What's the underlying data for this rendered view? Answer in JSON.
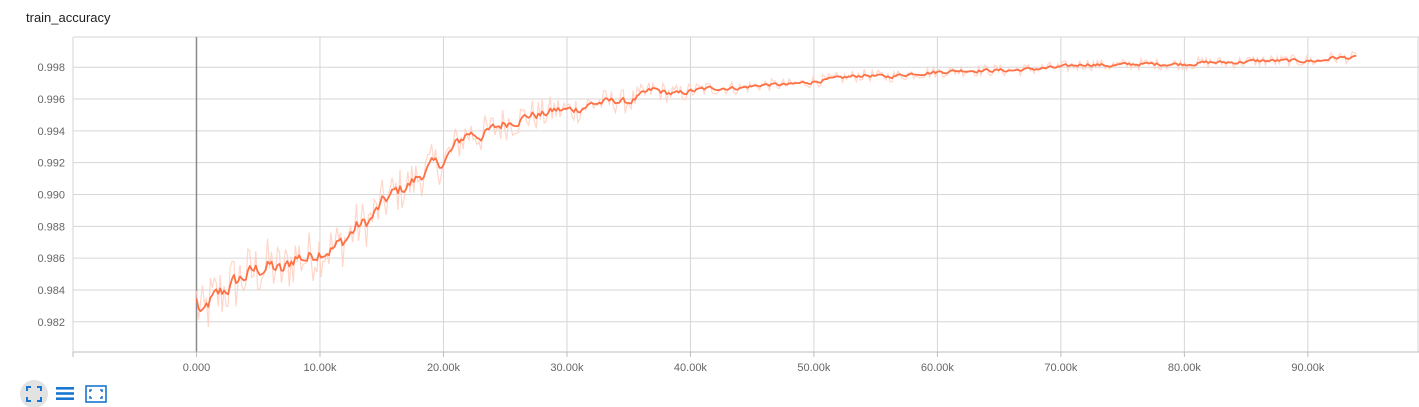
{
  "header": {
    "title": "train_accuracy"
  },
  "toolbar": {
    "buttons": [
      {
        "icon": "fit-to-data-icon",
        "active": true
      },
      {
        "icon": "toggle-y-log-icon",
        "active": false
      },
      {
        "icon": "reset-zoom-icon",
        "active": false
      }
    ]
  },
  "colors": {
    "line": "#ff7043",
    "raw_line": "#ffccbc",
    "grid": "#d6d6d6",
    "axis_text": "#666666",
    "icon": "#1976d2"
  },
  "chart_data": {
    "type": "line",
    "title": "train_accuracy",
    "xlabel": "",
    "ylabel": "",
    "xlim": [
      -10000,
      99000
    ],
    "ylim": [
      0.9801,
      0.9999
    ],
    "grid": true,
    "x_ticks": [
      0,
      10000,
      20000,
      30000,
      40000,
      50000,
      60000,
      70000,
      80000,
      90000
    ],
    "x_tick_labels": [
      "0.000",
      "10.00k",
      "20.00k",
      "30.00k",
      "40.00k",
      "50.00k",
      "60.00k",
      "70.00k",
      "80.00k",
      "90.00k"
    ],
    "y_ticks": [
      0.982,
      0.984,
      0.986,
      0.988,
      0.99,
      0.992,
      0.994,
      0.996,
      0.998
    ],
    "y_tick_labels": [
      "0.982",
      "0.984",
      "0.986",
      "0.988",
      "0.990",
      "0.992",
      "0.994",
      "0.996",
      "0.998"
    ],
    "series": [
      {
        "x": [
          0,
          500,
          1000,
          2000,
          3000,
          4000,
          5000,
          6000,
          7000,
          8000,
          9000,
          10000,
          11000,
          12000,
          13000,
          14000,
          15000,
          16000,
          17000,
          18000,
          19000,
          20000,
          21000,
          22000,
          23000,
          24000,
          25000,
          26000,
          27000,
          28000,
          29000,
          30000,
          31000,
          32000,
          33000,
          34000,
          35000,
          36000,
          37000,
          38000,
          39000,
          40000,
          42000,
          44000,
          46000,
          48000,
          50000,
          52000,
          54000,
          56000,
          58000,
          60000,
          62000,
          64000,
          66000,
          68000,
          70000,
          72000,
          74000,
          76000,
          78000,
          80000,
          82000,
          84000,
          86000,
          88000,
          90000,
          91000,
          92000,
          93000,
          94000
        ],
        "y": [
          0.9833,
          0.9822,
          0.9831,
          0.9838,
          0.9844,
          0.9849,
          0.9853,
          0.9855,
          0.9851,
          0.9861,
          0.986,
          0.9865,
          0.9866,
          0.9871,
          0.988,
          0.9883,
          0.9894,
          0.9901,
          0.9905,
          0.9911,
          0.9918,
          0.992,
          0.9931,
          0.9939,
          0.9937,
          0.9941,
          0.9945,
          0.9947,
          0.995,
          0.995,
          0.9953,
          0.9953,
          0.9954,
          0.9957,
          0.9958,
          0.9959,
          0.9958,
          0.9962,
          0.9966,
          0.9964,
          0.9963,
          0.9965,
          0.9967,
          0.9967,
          0.9969,
          0.9969,
          0.9971,
          0.9973,
          0.9975,
          0.9974,
          0.9976,
          0.9977,
          0.9978,
          0.9978,
          0.9978,
          0.9979,
          0.998,
          0.9982,
          0.9981,
          0.9982,
          0.9982,
          0.9982,
          0.9983,
          0.9983,
          0.9984,
          0.9984,
          0.9984,
          0.9984,
          0.9986,
          0.9986,
          0.9986
        ]
      }
    ]
  }
}
